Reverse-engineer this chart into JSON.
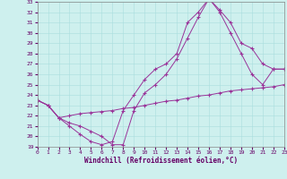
{
  "xlabel": "Windchill (Refroidissement éolien,°C)",
  "xlim": [
    0,
    23
  ],
  "ylim": [
    19,
    33
  ],
  "yticks": [
    19,
    20,
    21,
    22,
    23,
    24,
    25,
    26,
    27,
    28,
    29,
    30,
    31,
    32,
    33
  ],
  "xticks": [
    0,
    1,
    2,
    3,
    4,
    5,
    6,
    7,
    8,
    9,
    10,
    11,
    12,
    13,
    14,
    15,
    16,
    17,
    18,
    19,
    20,
    21,
    22,
    23
  ],
  "bg_color": "#cef0ee",
  "line_color": "#993399",
  "grid_color": "#aadddd",
  "line1_x": [
    0,
    1,
    2,
    3,
    4,
    5,
    6,
    7,
    8,
    9,
    10,
    11,
    12,
    13,
    14,
    15,
    16,
    17,
    18,
    19,
    20,
    21,
    22,
    23
  ],
  "line1_y": [
    23.5,
    23.0,
    21.8,
    21.0,
    20.2,
    19.5,
    19.2,
    19.5,
    22.5,
    24.0,
    25.5,
    26.5,
    27.0,
    28.0,
    31.0,
    32.0,
    33.3,
    32.2,
    31.0,
    29.0,
    28.5,
    27.0,
    26.5,
    26.5
  ],
  "line2_x": [
    0,
    1,
    2,
    3,
    4,
    5,
    6,
    7,
    8,
    9,
    10,
    11,
    12,
    13,
    14,
    15,
    16,
    17,
    18,
    19,
    20,
    21,
    22,
    23
  ],
  "line2_y": [
    23.5,
    23.0,
    21.8,
    21.3,
    21.0,
    20.5,
    20.0,
    19.2,
    19.2,
    22.5,
    24.2,
    25.0,
    26.0,
    27.5,
    29.5,
    31.5,
    33.3,
    32.0,
    30.0,
    28.0,
    26.0,
    25.0,
    26.5,
    26.5
  ],
  "line3_x": [
    0,
    1,
    2,
    3,
    4,
    5,
    6,
    7,
    8,
    9,
    10,
    11,
    12,
    13,
    14,
    15,
    16,
    17,
    18,
    19,
    20,
    21,
    22,
    23
  ],
  "line3_y": [
    23.5,
    23.0,
    21.8,
    22.0,
    22.2,
    22.3,
    22.4,
    22.5,
    22.7,
    22.8,
    23.0,
    23.2,
    23.4,
    23.5,
    23.7,
    23.9,
    24.0,
    24.2,
    24.4,
    24.5,
    24.6,
    24.7,
    24.8,
    25.0
  ]
}
